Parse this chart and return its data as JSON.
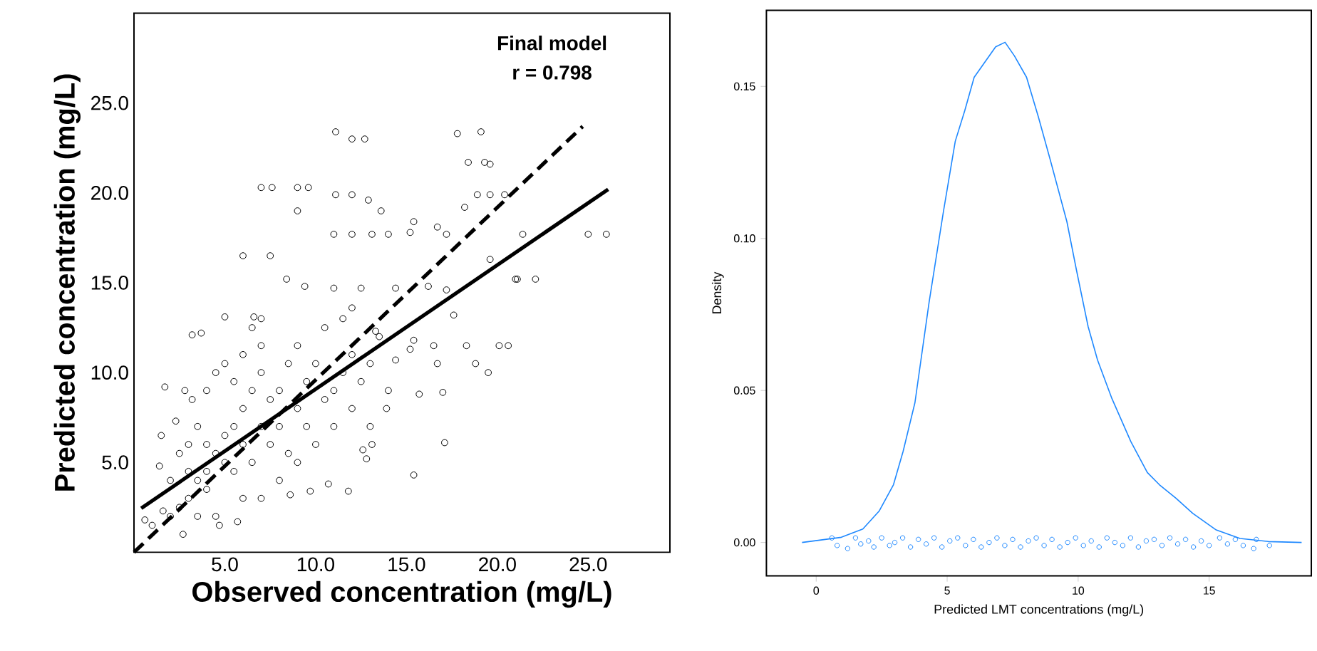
{
  "chart_data": [
    {
      "type": "scatter",
      "xlabel": "Observed concentration (mg/L)",
      "ylabel": "Predicted concentration (mg/L)",
      "annotations": [
        "Final model",
        "r = 0.798"
      ],
      "xlim": [
        0,
        29.5
      ],
      "ylim": [
        0,
        30
      ],
      "xticks": [
        {
          "value": 5,
          "label": "5.0"
        },
        {
          "value": 10,
          "label": "10.0"
        },
        {
          "value": 15,
          "label": "15.0"
        },
        {
          "value": 20,
          "label": "20.0"
        },
        {
          "value": 25,
          "label": "25.0"
        }
      ],
      "yticks": [
        {
          "value": 5,
          "label": "5.0"
        },
        {
          "value": 10,
          "label": "10.0"
        },
        {
          "value": 15,
          "label": "15.0"
        },
        {
          "value": 20,
          "label": "20.0"
        },
        {
          "value": 25,
          "label": "25.0"
        }
      ],
      "series": [
        {
          "color": "#000000",
          "marker": "circle",
          "x": [
            11.1,
            12.0,
            12.7,
            17.8,
            19.1,
            18.4,
            19.3,
            19.6,
            7.0,
            7.6,
            9.0,
            9.6,
            11.1,
            12.0,
            12.9,
            13.6,
            9.0,
            18.9,
            19.6,
            20.4,
            18.2,
            11.0,
            12.0,
            13.1,
            14.0,
            15.2,
            17.2,
            21.4,
            25.0,
            26.0,
            6.0,
            7.5,
            15.4,
            16.7,
            19.6,
            21.1,
            22.1,
            21.0,
            8.4,
            9.4,
            11.0,
            12.5,
            14.4,
            16.2,
            17.2,
            5.0,
            6.6,
            12.0,
            17.6,
            3.2,
            3.7,
            15.4,
            16.5,
            18.3,
            20.1,
            20.6,
            19.5,
            16.7,
            18.8,
            15.7,
            17.0,
            17.1,
            15.4,
            10.7,
            9.7,
            8.6,
            11.8,
            5.7,
            4.7,
            2.7,
            0.6,
            1.6,
            1.7,
            2.8,
            3.2,
            1.5,
            1.4,
            2.3,
            12.6,
            12.8,
            13.1,
            13.9,
            14.4,
            15.2,
            13.3,
            3.0,
            3.5,
            4.0,
            4.0,
            4.5,
            5.0,
            5.0,
            5.5,
            5.5,
            6.0,
            6.0,
            6.5,
            6.5,
            7.0,
            7.0,
            7.5,
            7.5,
            8.0,
            8.0,
            8.5,
            8.5,
            9.0,
            9.0,
            9.5,
            9.5,
            10.0,
            10.0,
            10.5,
            10.5,
            11.0,
            11.0,
            11.5,
            11.5,
            12.0,
            12.0,
            12.5,
            13.0,
            13.0,
            13.5,
            14.0,
            6.0,
            7.0,
            4.5,
            3.5,
            2.5,
            2.0,
            2.5,
            3.0,
            3.5,
            4.0,
            4.5,
            5.0,
            6.0,
            7.0,
            7.0,
            6.5,
            8.0,
            9.0,
            5.5,
            3.0,
            4.0,
            2.0,
            1.0
          ],
          "values": [
            23.4,
            23.0,
            23.0,
            23.3,
            23.4,
            21.7,
            21.7,
            21.6,
            20.3,
            20.3,
            20.3,
            20.3,
            19.9,
            19.9,
            19.6,
            19.0,
            19.0,
            19.9,
            19.9,
            19.9,
            19.2,
            17.7,
            17.7,
            17.7,
            17.7,
            17.8,
            17.7,
            17.7,
            17.7,
            17.7,
            16.5,
            16.5,
            18.4,
            18.1,
            16.3,
            15.2,
            15.2,
            15.2,
            15.2,
            14.8,
            14.7,
            14.7,
            14.7,
            14.8,
            14.6,
            13.1,
            13.1,
            13.6,
            13.2,
            12.1,
            12.2,
            11.8,
            11.5,
            11.5,
            11.5,
            11.5,
            10.0,
            10.5,
            10.5,
            8.8,
            8.9,
            6.1,
            4.3,
            3.8,
            3.4,
            3.2,
            3.4,
            1.7,
            1.5,
            1.0,
            1.8,
            2.3,
            9.2,
            9.0,
            8.5,
            6.5,
            4.8,
            7.3,
            5.7,
            5.2,
            6.0,
            8.0,
            10.7,
            11.3,
            12.3,
            3.0,
            4.0,
            4.5,
            3.5,
            5.5,
            5.0,
            6.5,
            4.5,
            7.0,
            6.0,
            8.0,
            5.0,
            9.0,
            7.0,
            10.0,
            8.5,
            6.0,
            9.0,
            7.0,
            10.5,
            5.5,
            8.0,
            11.5,
            9.5,
            7.0,
            10.5,
            6.0,
            8.5,
            12.5,
            9.0,
            7.0,
            10.0,
            13.0,
            8.0,
            11.0,
            9.5,
            7.0,
            10.5,
            12.0,
            9.0,
            3.0,
            3.0,
            2.0,
            2.0,
            2.5,
            4.0,
            5.5,
            6.0,
            7.0,
            9.0,
            10.0,
            10.5,
            11.0,
            11.5,
            13.0,
            12.5,
            4.0,
            5.0,
            9.5,
            4.5,
            6.0,
            2.0,
            1.5
          ]
        },
        {
          "type": "line",
          "color": "#000000",
          "line_style": "dashed",
          "x": [
            0,
            24.7
          ],
          "values": [
            0,
            23.7
          ]
        },
        {
          "type": "line",
          "color": "#000000",
          "line_style": "solid",
          "x": [
            0.4,
            26.1
          ],
          "values": [
            2.45,
            20.2
          ]
        }
      ]
    },
    {
      "type": "line",
      "xlabel": "Predicted LMT concentrations (mg/L)",
      "ylabel": "Density",
      "xlim": [
        -1.9,
        18.9
      ],
      "ylim": [
        -0.011,
        0.175
      ],
      "xticks": [
        0,
        5,
        10,
        15
      ],
      "yticks": [
        {
          "value": 0,
          "label": "0.00"
        },
        {
          "value": 0.05,
          "label": "0.05"
        },
        {
          "value": 0.1,
          "label": "0.10"
        },
        {
          "value": 0.15,
          "label": "0.15"
        }
      ],
      "series": [
        {
          "color": "#1e88ff",
          "marker": "none",
          "x": [
            -0.54,
            0.96,
            1.78,
            2.41,
            2.95,
            3.32,
            3.77,
            4.31,
            4.86,
            5.31,
            5.67,
            6.03,
            6.85,
            7.21,
            7.57,
            8.03,
            8.48,
            8.93,
            9.57,
            9.93,
            10.38,
            10.74,
            11.29,
            12.01,
            12.64,
            13.1,
            13.73,
            14.37,
            15.27,
            16.18,
            17.26,
            18.53
          ],
          "values": [
            0.0,
            0.0017,
            0.0044,
            0.0104,
            0.019,
            0.03,
            0.046,
            0.079,
            0.109,
            0.132,
            0.142,
            0.153,
            0.163,
            0.1645,
            0.16,
            0.153,
            0.14,
            0.126,
            0.1055,
            0.0898,
            0.071,
            0.06,
            0.0473,
            0.0332,
            0.023,
            0.019,
            0.0146,
            0.0096,
            0.0041,
            0.0013,
            0.0003,
            0.0
          ]
        },
        {
          "type": "scatter",
          "color": "#1e88ff",
          "marker": "circle",
          "x": [
            0.6,
            0.8,
            1.2,
            1.5,
            1.7,
            2.0,
            2.2,
            2.5,
            2.8,
            3.0,
            3.3,
            3.6,
            3.9,
            4.2,
            4.5,
            4.8,
            5.1,
            5.4,
            5.7,
            6.0,
            6.3,
            6.6,
            6.9,
            7.2,
            7.5,
            7.8,
            8.1,
            8.4,
            8.7,
            9.0,
            9.3,
            9.6,
            9.9,
            10.2,
            10.5,
            10.8,
            11.1,
            11.4,
            11.7,
            12.0,
            12.3,
            12.6,
            12.9,
            13.2,
            13.5,
            13.8,
            14.1,
            14.4,
            14.7,
            15.0,
            15.4,
            15.7,
            16.0,
            16.3,
            16.7,
            16.8,
            17.3
          ],
          "values": [
            0.0015,
            -0.001,
            -0.002,
            0.0015,
            -0.0005,
            0.0005,
            -0.0015,
            0.0015,
            -0.001,
            0.0,
            0.0015,
            -0.0015,
            0.001,
            -0.0005,
            0.0015,
            -0.0015,
            0.0005,
            0.0015,
            -0.001,
            0.001,
            -0.0015,
            0.0,
            0.0015,
            -0.001,
            0.001,
            -0.0015,
            0.0005,
            0.0015,
            -0.001,
            0.001,
            -0.0015,
            0.0,
            0.0015,
            -0.001,
            0.0005,
            -0.0015,
            0.0015,
            0.0,
            -0.001,
            0.0015,
            -0.0015,
            0.0005,
            0.001,
            -0.001,
            0.0015,
            -0.0005,
            0.001,
            -0.0015,
            0.0005,
            -0.001,
            0.0015,
            -0.0005,
            0.001,
            -0.001,
            -0.002,
            0.001,
            -0.001
          ]
        }
      ]
    }
  ]
}
